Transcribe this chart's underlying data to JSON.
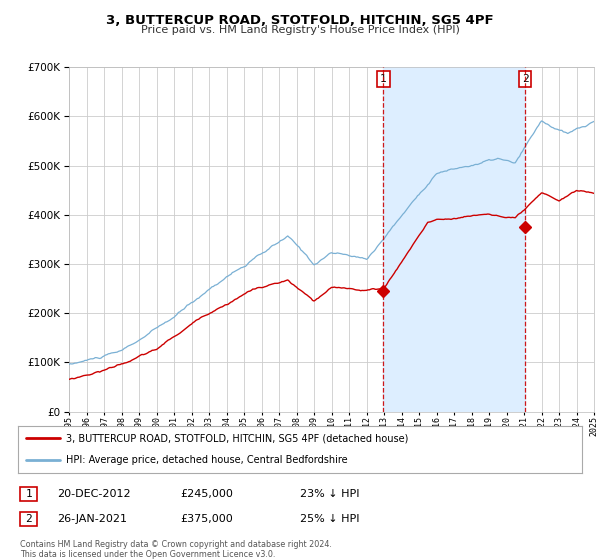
{
  "title": "3, BUTTERCUP ROAD, STOTFOLD, HITCHIN, SG5 4PF",
  "subtitle": "Price paid vs. HM Land Registry's House Price Index (HPI)",
  "plot_bg_color": "#ffffff",
  "shade_color": "#ddeeff",
  "grid_color": "#cccccc",
  "red_color": "#cc0000",
  "blue_color": "#7ab0d4",
  "marker1_date": 2012.97,
  "marker1_value": 245000,
  "marker2_date": 2021.07,
  "marker2_value": 375000,
  "marker1_label": "20-DEC-2012",
  "marker1_price": "£245,000",
  "marker1_hpi": "23% ↓ HPI",
  "marker2_label": "26-JAN-2021",
  "marker2_price": "£375,000",
  "marker2_hpi": "25% ↓ HPI",
  "legend_line1": "3, BUTTERCUP ROAD, STOTFOLD, HITCHIN, SG5 4PF (detached house)",
  "legend_line2": "HPI: Average price, detached house, Central Bedfordshire",
  "footnote1": "Contains HM Land Registry data © Crown copyright and database right 2024.",
  "footnote2": "This data is licensed under the Open Government Licence v3.0.",
  "ylim_max": 700000,
  "xmin": 1995,
  "xmax": 2025
}
